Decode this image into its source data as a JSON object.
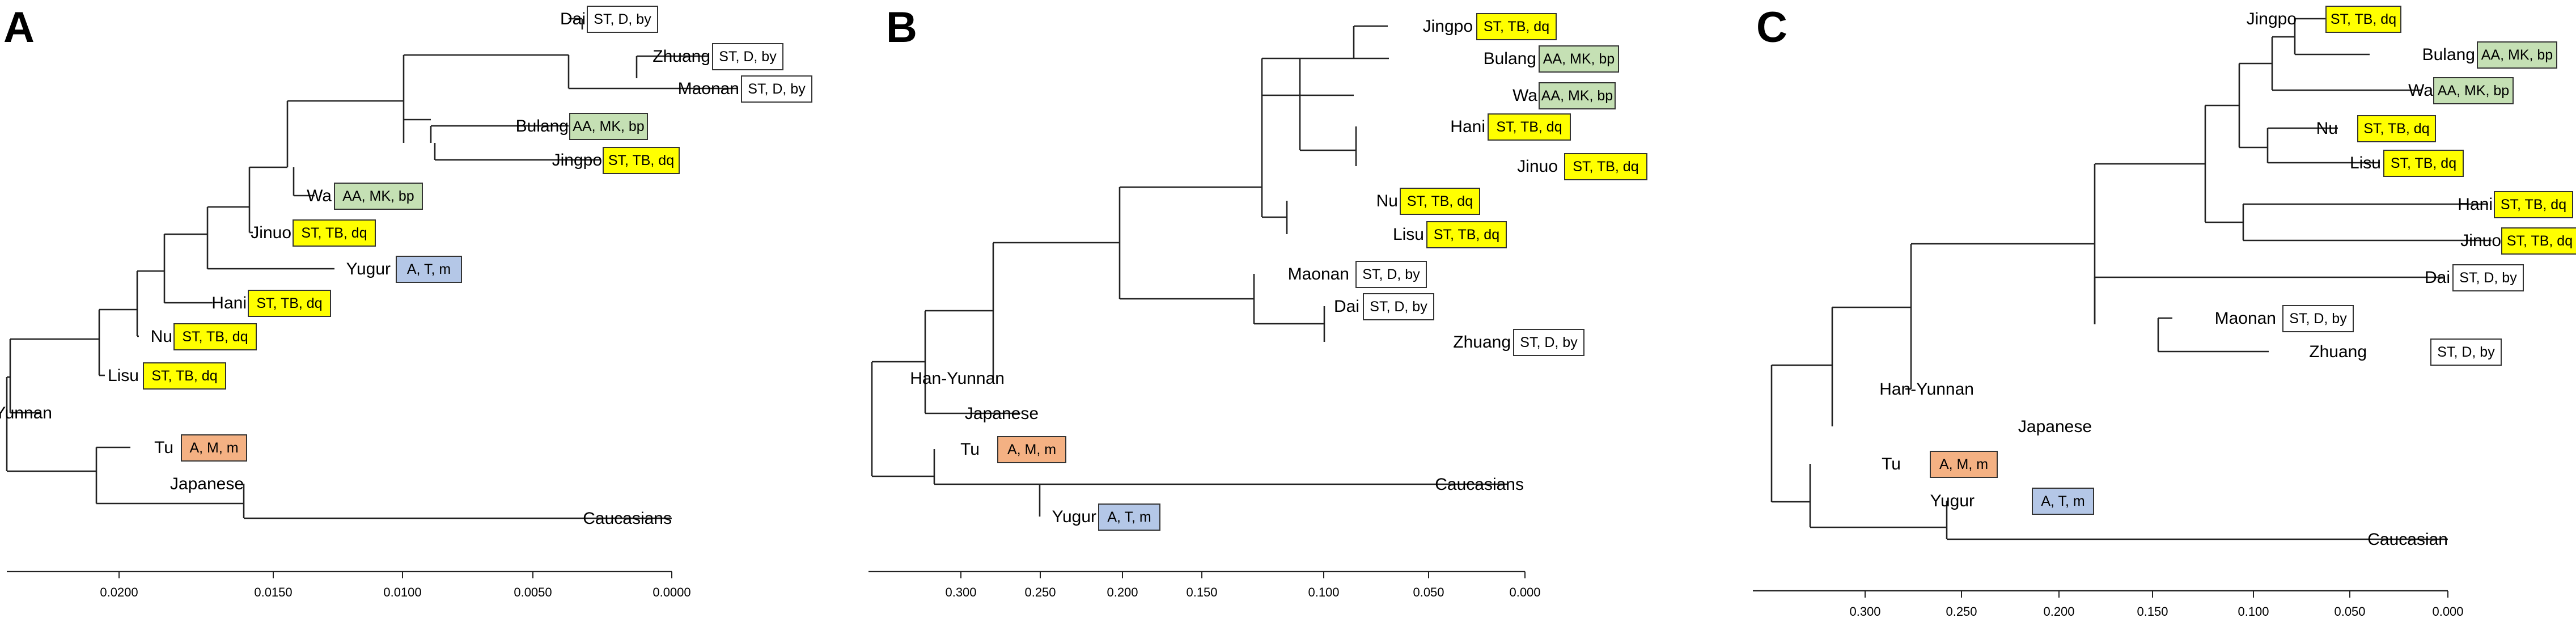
{
  "chart_data": [
    {
      "type": "dendrogram",
      "panel_label": "A",
      "axis": {
        "ticks": [
          {
            "value": 0.02,
            "label": "0.0200"
          },
          {
            "value": 0.015,
            "label": "0.0150"
          },
          {
            "value": 0.01,
            "label": "0.0100"
          },
          {
            "value": 0.005,
            "label": "0.0050"
          },
          {
            "value": 0.0,
            "label": "0.0000"
          }
        ]
      },
      "leaves": [
        {
          "name": "Dai",
          "tag": "ST, D, by",
          "group": "D"
        },
        {
          "name": "Zhuang",
          "tag": "ST, D, by",
          "group": "D"
        },
        {
          "name": "Maonan",
          "tag": "ST, D, by",
          "group": "D"
        },
        {
          "name": "Bulang",
          "tag": "AA, MK, bp",
          "group": "MK"
        },
        {
          "name": "Jingpo",
          "tag": "ST, TB, dq",
          "group": "TB"
        },
        {
          "name": "Wa",
          "tag": "AA, MK, bp",
          "group": "MK"
        },
        {
          "name": "Jinuo",
          "tag": "ST, TB, dq",
          "group": "TB"
        },
        {
          "name": "Yugur",
          "tag": "A, T, m",
          "group": "T"
        },
        {
          "name": "Hani",
          "tag": "ST, TB, dq",
          "group": "TB"
        },
        {
          "name": "Nu",
          "tag": "ST, TB, dq",
          "group": "TB"
        },
        {
          "name": "Lisu",
          "tag": "ST, TB, dq",
          "group": "TB"
        },
        {
          "name": "Han-Yunnan",
          "tag": "",
          "group": ""
        },
        {
          "name": "Tu",
          "tag": "A, M, m",
          "group": "M"
        },
        {
          "name": "Japanese",
          "tag": "",
          "group": ""
        },
        {
          "name": "Caucasians",
          "tag": "",
          "group": ""
        }
      ]
    },
    {
      "type": "dendrogram",
      "panel_label": "B",
      "axis": {
        "ticks": [
          {
            "value": 0.3,
            "label": "0.300"
          },
          {
            "value": 0.25,
            "label": "0.250"
          },
          {
            "value": 0.2,
            "label": "0.200"
          },
          {
            "value": 0.15,
            "label": "0.150"
          },
          {
            "value": 0.1,
            "label": "0.100"
          },
          {
            "value": 0.05,
            "label": "0.050"
          },
          {
            "value": 0.0,
            "label": "0.000"
          }
        ]
      },
      "leaves": [
        {
          "name": "Jingpo",
          "tag": "ST, TB, dq",
          "group": "TB"
        },
        {
          "name": "Bulang",
          "tag": "AA, MK, bp",
          "group": "MK"
        },
        {
          "name": "Wa",
          "tag": "AA, MK, bp",
          "group": "MK"
        },
        {
          "name": "Hani",
          "tag": "ST, TB, dq",
          "group": "TB"
        },
        {
          "name": "Jinuo",
          "tag": "ST, TB, dq",
          "group": "TB"
        },
        {
          "name": "Nu",
          "tag": "ST, TB, dq",
          "group": "TB"
        },
        {
          "name": "Lisu",
          "tag": "ST, TB, dq",
          "group": "TB"
        },
        {
          "name": "Maonan",
          "tag": "ST, D, by",
          "group": "D"
        },
        {
          "name": "Dai",
          "tag": "ST, D, by",
          "group": "D"
        },
        {
          "name": "Zhuang",
          "tag": "ST, D, by",
          "group": "D"
        },
        {
          "name": "Han-Yunnan",
          "tag": "",
          "group": ""
        },
        {
          "name": "Japanese",
          "tag": "",
          "group": ""
        },
        {
          "name": "Tu",
          "tag": "A, M, m",
          "group": "M"
        },
        {
          "name": "Caucasians",
          "tag": "",
          "group": ""
        },
        {
          "name": "Yugur",
          "tag": "A, T, m",
          "group": "T"
        }
      ]
    },
    {
      "type": "dendrogram",
      "panel_label": "C",
      "axis": {
        "ticks": [
          {
            "value": 0.3,
            "label": "0.300"
          },
          {
            "value": 0.25,
            "label": "0.250"
          },
          {
            "value": 0.2,
            "label": "0.200"
          },
          {
            "value": 0.15,
            "label": "0.150"
          },
          {
            "value": 0.1,
            "label": "0.100"
          },
          {
            "value": 0.05,
            "label": "0.050"
          },
          {
            "value": 0.0,
            "label": "0.000"
          }
        ]
      },
      "leaves": [
        {
          "name": "Jingpo",
          "tag": "ST, TB, dq",
          "group": "TB"
        },
        {
          "name": "Bulang",
          "tag": "AA, MK, bp",
          "group": "MK"
        },
        {
          "name": "Wa",
          "tag": "AA, MK, bp",
          "group": "MK"
        },
        {
          "name": "Nu",
          "tag": "ST, TB, dq",
          "group": "TB"
        },
        {
          "name": "Lisu",
          "tag": "ST, TB, dq",
          "group": "TB"
        },
        {
          "name": "Hani",
          "tag": "ST, TB, dq",
          "group": "TB"
        },
        {
          "name": "Jinuo",
          "tag": "ST, TB, dq",
          "group": "TB"
        },
        {
          "name": "Dai",
          "tag": "ST, D, by",
          "group": "D"
        },
        {
          "name": "Maonan",
          "tag": "ST, D, by",
          "group": "D"
        },
        {
          "name": "Zhuang",
          "tag": "ST, D, by",
          "group": "D"
        },
        {
          "name": "Han-Yunnan",
          "tag": "",
          "group": ""
        },
        {
          "name": "Japanese",
          "tag": "",
          "group": ""
        },
        {
          "name": "Tu",
          "tag": "A, M, m",
          "group": "M"
        },
        {
          "name": "Yugur",
          "tag": "A, T, m",
          "group": "T"
        },
        {
          "name": "Caucasian",
          "tag": "",
          "group": ""
        }
      ]
    }
  ],
  "tag_colors": {
    "TB": "#ffff00",
    "MK": "#c5e0b4",
    "D": "#ffffff",
    "T": "#b4c7e7",
    "M": "#f4b183"
  }
}
